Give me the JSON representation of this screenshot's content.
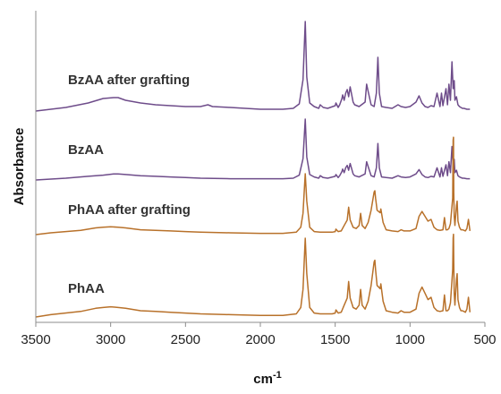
{
  "chart_data": {
    "type": "line",
    "xlabel": "cm",
    "xlabel_superscript": "-1",
    "ylabel": "Absorbance",
    "xlim": [
      3500,
      500
    ],
    "x_ticks": [
      3500,
      3000,
      2500,
      2000,
      1500,
      1000,
      500
    ],
    "y_ticks_shown": false,
    "grid": false,
    "legend": "inline labels",
    "colors": {
      "purple": "#6e4c8a",
      "brown": "#b8712a",
      "axis": "#8c8c8c"
    },
    "series": [
      {
        "name": "BzAA after grafting",
        "color": "#6e4c8a",
        "baseline": 0.0,
        "scale": 1.0,
        "x": [
          3600,
          3300,
          3150,
          3050,
          2980,
          2950,
          2900,
          2800,
          2700,
          2600,
          2500,
          2400,
          2350,
          2320,
          2200,
          2000,
          1850,
          1780,
          1740,
          1715,
          1700,
          1690,
          1670,
          1640,
          1610,
          1600,
          1580,
          1550,
          1500,
          1495,
          1480,
          1470,
          1455,
          1450,
          1440,
          1430,
          1420,
          1410,
          1400,
          1380,
          1370,
          1340,
          1300,
          1290,
          1280,
          1260,
          1240,
          1225,
          1215,
          1205,
          1190,
          1160,
          1120,
          1080,
          1060,
          1030,
          1000,
          960,
          940,
          920,
          900,
          880,
          860,
          840,
          820,
          800,
          790,
          780,
          760,
          750,
          740,
          730,
          720,
          712,
          705,
          700,
          690,
          680,
          670,
          660,
          650,
          640,
          620,
          600
        ],
        "y": [
          0.0,
          0.04,
          0.09,
          0.14,
          0.15,
          0.15,
          0.12,
          0.09,
          0.07,
          0.06,
          0.05,
          0.05,
          0.07,
          0.05,
          0.04,
          0.02,
          0.02,
          0.03,
          0.08,
          0.35,
          1.0,
          0.38,
          0.09,
          0.05,
          0.03,
          0.07,
          0.04,
          0.03,
          0.06,
          0.09,
          0.04,
          0.07,
          0.14,
          0.18,
          0.12,
          0.2,
          0.24,
          0.16,
          0.27,
          0.1,
          0.07,
          0.05,
          0.1,
          0.3,
          0.22,
          0.07,
          0.05,
          0.2,
          0.6,
          0.2,
          0.05,
          0.04,
          0.03,
          0.07,
          0.05,
          0.04,
          0.05,
          0.1,
          0.17,
          0.09,
          0.05,
          0.04,
          0.06,
          0.05,
          0.2,
          0.05,
          0.2,
          0.06,
          0.25,
          0.07,
          0.3,
          0.12,
          0.55,
          0.25,
          0.34,
          0.12,
          0.16,
          0.07,
          0.05,
          0.04,
          0.03,
          0.03,
          0.02,
          0.02
        ]
      },
      {
        "name": "BzAA",
        "color": "#6e4c8a",
        "baseline": 0.0,
        "scale": 1.0,
        "x": [
          3600,
          3300,
          3150,
          3050,
          2980,
          2950,
          2900,
          2800,
          2700,
          2600,
          2500,
          2400,
          2200,
          2000,
          1850,
          1780,
          1740,
          1715,
          1700,
          1690,
          1670,
          1640,
          1610,
          1600,
          1580,
          1550,
          1500,
          1495,
          1480,
          1470,
          1455,
          1450,
          1440,
          1430,
          1420,
          1410,
          1400,
          1380,
          1370,
          1340,
          1300,
          1290,
          1280,
          1260,
          1240,
          1225,
          1215,
          1205,
          1190,
          1160,
          1120,
          1080,
          1060,
          1030,
          1000,
          960,
          940,
          920,
          900,
          880,
          860,
          840,
          820,
          800,
          790,
          780,
          760,
          750,
          740,
          730,
          720,
          712,
          705,
          700,
          690,
          680,
          670,
          660,
          650,
          640,
          620,
          600
        ],
        "y": [
          0.0,
          0.03,
          0.06,
          0.08,
          0.1,
          0.1,
          0.09,
          0.07,
          0.06,
          0.05,
          0.04,
          0.03,
          0.02,
          0.02,
          0.02,
          0.03,
          0.08,
          0.35,
          1.0,
          0.38,
          0.09,
          0.05,
          0.03,
          0.07,
          0.04,
          0.03,
          0.06,
          0.09,
          0.04,
          0.07,
          0.14,
          0.18,
          0.12,
          0.2,
          0.24,
          0.16,
          0.27,
          0.1,
          0.07,
          0.05,
          0.1,
          0.3,
          0.22,
          0.07,
          0.05,
          0.2,
          0.6,
          0.2,
          0.05,
          0.04,
          0.03,
          0.07,
          0.05,
          0.04,
          0.05,
          0.1,
          0.17,
          0.09,
          0.05,
          0.04,
          0.06,
          0.05,
          0.2,
          0.05,
          0.2,
          0.06,
          0.25,
          0.07,
          0.3,
          0.12,
          0.55,
          0.25,
          0.34,
          0.12,
          0.16,
          0.07,
          0.05,
          0.04,
          0.03,
          0.03,
          0.02,
          0.02
        ]
      },
      {
        "name": "PhAA after grafting",
        "color": "#b8712a",
        "baseline": 0.0,
        "scale": 1.0,
        "x": [
          3600,
          3400,
          3200,
          3100,
          3050,
          3000,
          2950,
          2900,
          2800,
          2700,
          2600,
          2500,
          2400,
          2200,
          2000,
          1850,
          1760,
          1730,
          1715,
          1705,
          1700,
          1690,
          1670,
          1640,
          1600,
          1560,
          1520,
          1500,
          1495,
          1480,
          1460,
          1440,
          1420,
          1410,
          1400,
          1380,
          1360,
          1340,
          1330,
          1320,
          1300,
          1280,
          1260,
          1240,
          1235,
          1230,
          1220,
          1200,
          1195,
          1180,
          1160,
          1120,
          1080,
          1060,
          1040,
          1000,
          960,
          940,
          920,
          900,
          880,
          860,
          840,
          820,
          800,
          780,
          770,
          760,
          750,
          740,
          730,
          715,
          712,
          710,
          708,
          705,
          700,
          690,
          685,
          680,
          670,
          660,
          650,
          640,
          630,
          620,
          610,
          600
        ],
        "y": [
          0.0,
          0.03,
          0.07,
          0.11,
          0.12,
          0.13,
          0.12,
          0.11,
          0.08,
          0.07,
          0.06,
          0.05,
          0.04,
          0.03,
          0.02,
          0.02,
          0.04,
          0.12,
          0.35,
          0.8,
          1.0,
          0.55,
          0.12,
          0.05,
          0.04,
          0.04,
          0.04,
          0.05,
          0.09,
          0.05,
          0.06,
          0.15,
          0.24,
          0.45,
          0.24,
          0.12,
          0.1,
          0.15,
          0.35,
          0.15,
          0.1,
          0.2,
          0.4,
          0.7,
          0.72,
          0.6,
          0.4,
          0.36,
          0.42,
          0.2,
          0.08,
          0.06,
          0.05,
          0.08,
          0.06,
          0.06,
          0.1,
          0.3,
          0.38,
          0.3,
          0.22,
          0.25,
          0.12,
          0.08,
          0.07,
          0.08,
          0.28,
          0.08,
          0.08,
          0.1,
          0.18,
          0.6,
          1.55,
          1.6,
          0.7,
          0.3,
          0.15,
          0.48,
          0.55,
          0.22,
          0.12,
          0.08,
          0.08,
          0.07,
          0.06,
          0.1,
          0.25,
          0.06
        ]
      },
      {
        "name": "PhAA",
        "color": "#b8712a",
        "baseline": 0.0,
        "scale": 1.0,
        "x": [
          3600,
          3400,
          3200,
          3100,
          3050,
          3000,
          2950,
          2900,
          2800,
          2700,
          2600,
          2500,
          2400,
          2200,
          2000,
          1850,
          1760,
          1730,
          1715,
          1705,
          1700,
          1690,
          1670,
          1640,
          1600,
          1560,
          1520,
          1500,
          1495,
          1480,
          1460,
          1440,
          1420,
          1410,
          1400,
          1380,
          1360,
          1340,
          1330,
          1320,
          1300,
          1280,
          1260,
          1240,
          1235,
          1230,
          1220,
          1200,
          1195,
          1180,
          1160,
          1120,
          1080,
          1060,
          1040,
          1000,
          960,
          940,
          920,
          900,
          880,
          860,
          840,
          820,
          800,
          780,
          770,
          760,
          750,
          740,
          730,
          715,
          712,
          710,
          708,
          705,
          700,
          690,
          685,
          680,
          670,
          660,
          650,
          640,
          630,
          620,
          610,
          600
        ],
        "y": [
          0.0,
          0.03,
          0.07,
          0.11,
          0.12,
          0.13,
          0.12,
          0.11,
          0.08,
          0.07,
          0.06,
          0.05,
          0.04,
          0.03,
          0.02,
          0.02,
          0.04,
          0.12,
          0.35,
          0.8,
          1.0,
          0.55,
          0.12,
          0.05,
          0.04,
          0.04,
          0.04,
          0.05,
          0.09,
          0.05,
          0.06,
          0.15,
          0.24,
          0.45,
          0.24,
          0.12,
          0.1,
          0.15,
          0.35,
          0.15,
          0.1,
          0.2,
          0.4,
          0.7,
          0.72,
          0.6,
          0.4,
          0.36,
          0.42,
          0.2,
          0.08,
          0.06,
          0.05,
          0.08,
          0.06,
          0.06,
          0.1,
          0.3,
          0.38,
          0.3,
          0.22,
          0.25,
          0.12,
          0.08,
          0.07,
          0.08,
          0.28,
          0.08,
          0.08,
          0.1,
          0.18,
          0.6,
          1.0,
          1.05,
          0.7,
          0.3,
          0.15,
          0.48,
          0.55,
          0.22,
          0.12,
          0.08,
          0.08,
          0.07,
          0.06,
          0.1,
          0.25,
          0.06
        ]
      }
    ]
  }
}
